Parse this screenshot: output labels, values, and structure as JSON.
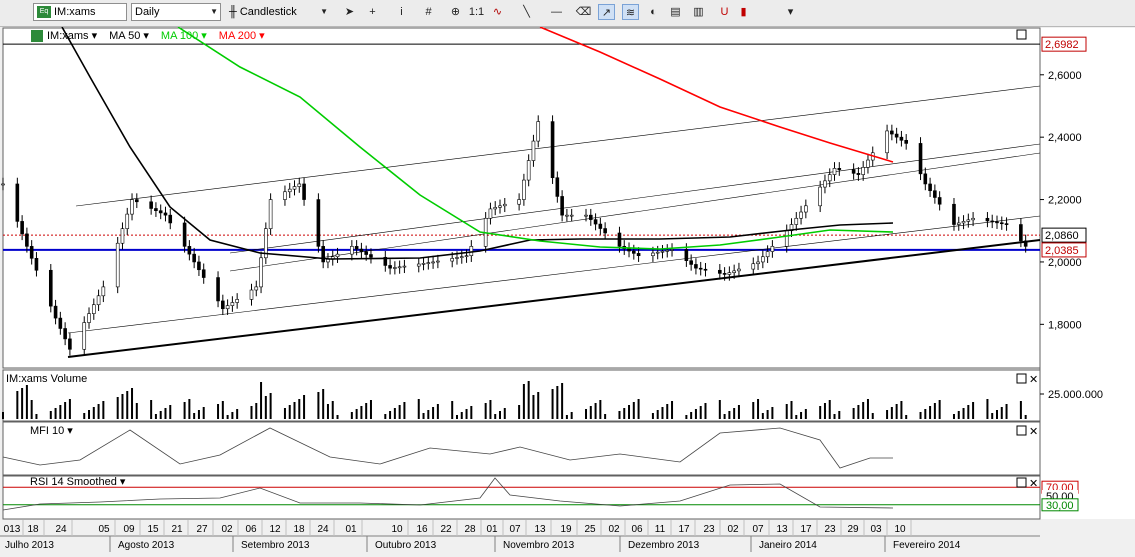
{
  "toolbar": {
    "symbol": "IM:xams",
    "interval": "Daily",
    "chart_type": "Candlestick",
    "tools": [
      "cursor-icon",
      "crosshair-icon",
      "info-icon",
      "grid-icon",
      "zoom-icon",
      "one-to-one-icon",
      "wave-icon",
      "line-icon",
      "hline-icon",
      "eraser-icon",
      "trend-icon",
      "fib-icon",
      "cycle-icon",
      "pattern-icon",
      "template-icon",
      "magnet-icon",
      "bars-icon",
      "more-icon"
    ]
  },
  "price_panel": {
    "legend": [
      {
        "label": "IM:xams",
        "color": "#000000"
      },
      {
        "label": "MA 50",
        "color": "#000000"
      },
      {
        "label": "MA 100",
        "color": "#00cc00"
      },
      {
        "label": "MA 200",
        "color": "#ff0000"
      }
    ],
    "axis_labels": [
      "2,6000",
      "2,4000",
      "2,2000",
      "2,0000",
      "1,8000"
    ],
    "price_tags": [
      {
        "label": "2,6982",
        "color": "#c00000"
      },
      {
        "label": "2,0860",
        "color": "#000000"
      },
      {
        "label": "2,0385",
        "color": "#c00000"
      }
    ],
    "hlines": [
      {
        "value": 2.6982,
        "color": "#000000",
        "style": "solid"
      },
      {
        "value": 2.086,
        "color": "#cc0000",
        "style": "dotted"
      },
      {
        "value": 2.0385,
        "color": "#0000cc",
        "style": "solid"
      }
    ]
  },
  "volume_panel": {
    "title": "IM:xams Volume",
    "axis_label": "25.000.000"
  },
  "mfi_panel": {
    "title": "MFI 10"
  },
  "rsi_panel": {
    "title": "RSI 14 Smoothed",
    "levels": [
      "70,00",
      "50,00",
      "30,00"
    ]
  },
  "x_axis": {
    "days": [
      "013",
      "18",
      "24",
      "05",
      "09",
      "15",
      "21",
      "27",
      "02",
      "06",
      "12",
      "18",
      "24",
      "01",
      "10",
      "16",
      "22",
      "28",
      "01",
      "07",
      "13",
      "19",
      "25",
      "02",
      "06",
      "11",
      "17",
      "23",
      "02",
      "07",
      "13",
      "17",
      "23",
      "29",
      "03",
      "10"
    ],
    "months": [
      "Julho 2013",
      "Agosto 2013",
      "Setembro 2013",
      "Outubro 2013",
      "Novembro 2013",
      "Dezembro 2013",
      "Janeiro 2014",
      "Fevereiro 2014"
    ]
  },
  "chart_data": {
    "type": "candlestick",
    "symbol": "IM:xams",
    "interval": "Daily",
    "x_range": [
      "2013-07-12",
      "2014-02-14"
    ],
    "ylim": [
      1.66,
      2.75
    ],
    "close_series": [
      {
        "date": "2013-07-12",
        "value": 2.25
      },
      {
        "date": "2013-07-17",
        "value": 2.05
      },
      {
        "date": "2013-07-23",
        "value": 1.82
      },
      {
        "date": "2013-07-26",
        "value": 1.72
      },
      {
        "date": "2013-08-02",
        "value": 1.92
      },
      {
        "date": "2013-08-08",
        "value": 2.2
      },
      {
        "date": "2013-08-15",
        "value": 2.15
      },
      {
        "date": "2013-08-21",
        "value": 2.0
      },
      {
        "date": "2013-08-27",
        "value": 1.85
      },
      {
        "date": "2013-09-03",
        "value": 1.92
      },
      {
        "date": "2013-09-06",
        "value": 2.2
      },
      {
        "date": "2013-09-12",
        "value": 2.25
      },
      {
        "date": "2013-09-17",
        "value": 2.0
      },
      {
        "date": "2013-09-23",
        "value": 2.05
      },
      {
        "date": "2013-10-01",
        "value": 1.98
      },
      {
        "date": "2013-10-10",
        "value": 2.0
      },
      {
        "date": "2013-10-17",
        "value": 2.02
      },
      {
        "date": "2013-10-22",
        "value": 2.17
      },
      {
        "date": "2013-10-28",
        "value": 2.2
      },
      {
        "date": "2013-11-01",
        "value": 2.45
      },
      {
        "date": "2013-11-06",
        "value": 2.15
      },
      {
        "date": "2013-11-11",
        "value": 2.15
      },
      {
        "date": "2013-11-18",
        "value": 2.05
      },
      {
        "date": "2013-11-22",
        "value": 2.02
      },
      {
        "date": "2013-11-29",
        "value": 2.04
      },
      {
        "date": "2013-12-04",
        "value": 1.98
      },
      {
        "date": "2013-12-10",
        "value": 1.96
      },
      {
        "date": "2013-12-17",
        "value": 2.0
      },
      {
        "date": "2013-12-23",
        "value": 2.1
      },
      {
        "date": "2014-01-02",
        "value": 2.3
      },
      {
        "date": "2014-01-07",
        "value": 2.28
      },
      {
        "date": "2014-01-13",
        "value": 2.42
      },
      {
        "date": "2014-01-17",
        "value": 2.38
      },
      {
        "date": "2014-01-21",
        "value": 2.25
      },
      {
        "date": "2014-01-27",
        "value": 2.12
      },
      {
        "date": "2014-01-31",
        "value": 2.14
      },
      {
        "date": "2014-02-07",
        "value": 2.12
      },
      {
        "date": "2014-02-11",
        "value": 2.05
      }
    ],
    "price_markers": [
      2.6982,
      2.086,
      2.0385
    ],
    "indicators": [
      "MA 50",
      "MA 100",
      "MA 200",
      "IM:xams Volume",
      "MFI 10",
      "RSI 14 Smoothed"
    ],
    "rsi_levels": [
      70,
      50,
      30
    ]
  }
}
